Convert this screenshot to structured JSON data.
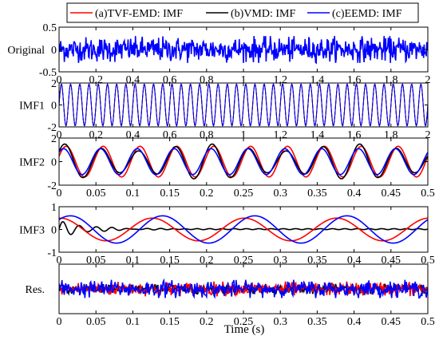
{
  "chart_data": {
    "type": "line",
    "xlabel": "Time (s)",
    "legend": {
      "placement": "top",
      "entries": [
        {
          "label": "(a)TVF-EMD: IMF",
          "color": "#ff0000"
        },
        {
          "label": "(b)VMD: IMF",
          "color": "#000000"
        },
        {
          "label": "(c)EEMD: IMF",
          "color": "#0000ff"
        }
      ]
    },
    "panels": [
      {
        "ylabel": "Original",
        "xlim": [
          0,
          2
        ],
        "ylim": [
          -0.5,
          0.5
        ],
        "xticks": [
          "0",
          "0.2",
          "0.4",
          "0.6",
          "0.8",
          "1",
          "1.2",
          "1.4",
          "1.6",
          "1.8",
          "2"
        ],
        "yticks": [
          "-0.5",
          "0",
          "0.5"
        ],
        "series": [
          {
            "color": "#0000ff",
            "kind": "noise",
            "amplitude": 0.3,
            "samples": 700
          }
        ]
      },
      {
        "ylabel": "IMF1",
        "xlim": [
          0,
          2
        ],
        "ylim": [
          -2,
          2
        ],
        "xticks": [
          "0",
          "0.2",
          "0.4",
          "0.6",
          "0.8",
          "1",
          "1.2",
          "1.4",
          "1.6",
          "1.8",
          "2"
        ],
        "yticks": [
          "-2",
          "0",
          "2"
        ],
        "series": [
          {
            "color": "#ff0000",
            "kind": "sine",
            "amplitude": 1.9,
            "frequency": 20,
            "phase": 0
          },
          {
            "color": "#000000",
            "kind": "sine",
            "amplitude": 1.9,
            "frequency": 20,
            "phase": 0
          },
          {
            "color": "#0000ff",
            "kind": "sine",
            "amplitude": 1.9,
            "frequency": 20,
            "phase": 0
          }
        ]
      },
      {
        "ylabel": "IMF2",
        "xlim": [
          0,
          0.5
        ],
        "ylim": [
          -2,
          2
        ],
        "xticks": [
          "0",
          "0.05",
          "0.1",
          "0.15",
          "0.2",
          "0.25",
          "0.3",
          "0.35",
          "0.4",
          "0.45",
          "0.5"
        ],
        "yticks": [
          "-2",
          "0",
          "2"
        ],
        "series": [
          {
            "color": "#ff0000",
            "kind": "sine",
            "amplitude": 1.3,
            "frequency": 20,
            "phase": 0.35
          },
          {
            "color": "#000000",
            "kind": "modsine",
            "amplitude": 1.5,
            "frequency": 20,
            "phase": 0.6,
            "mod_depth": 0.25,
            "mod_frequency": 5
          },
          {
            "color": "#0000ff",
            "kind": "sine",
            "amplitude": 1.1,
            "frequency": 20,
            "phase": 0.8
          }
        ]
      },
      {
        "ylabel": "IMF3",
        "xlim": [
          0,
          0.5
        ],
        "ylim": [
          -1,
          1
        ],
        "xticks": [
          "0",
          "0.05",
          "0.1",
          "0.15",
          "0.2",
          "0.25",
          "0.3",
          "0.35",
          "0.4",
          "0.45",
          "0.5"
        ],
        "yticks": [
          "-1",
          "0",
          "1"
        ],
        "series": [
          {
            "color": "#000000",
            "kind": "decaysine",
            "amplitude": 0.35,
            "frequency": 45,
            "phase": 0,
            "offset": 0.05
          },
          {
            "color": "#ff0000",
            "kind": "sine",
            "amplitude": 0.5,
            "frequency": 8,
            "phase": 1.5
          },
          {
            "color": "#0000ff",
            "kind": "sine",
            "amplitude": 0.6,
            "frequency": 8,
            "phase": 0.8
          }
        ]
      },
      {
        "ylabel": "Res.",
        "xlim": [
          0,
          0.5
        ],
        "ylim": [
          -0.6,
          0.6
        ],
        "xticks": [
          "0",
          "0.05",
          "0.1",
          "0.15",
          "0.2",
          "0.25",
          "0.3",
          "0.35",
          "0.4",
          "0.45",
          "0.5"
        ],
        "yticks": [],
        "series": [
          {
            "color": "#000000",
            "kind": "noise",
            "amplitude": 0.12,
            "samples": 500
          },
          {
            "color": "#ff0000",
            "kind": "noise",
            "amplitude": 0.18,
            "samples": 500
          },
          {
            "color": "#0000ff",
            "kind": "noise",
            "amplitude": 0.22,
            "samples": 500
          }
        ]
      }
    ]
  }
}
